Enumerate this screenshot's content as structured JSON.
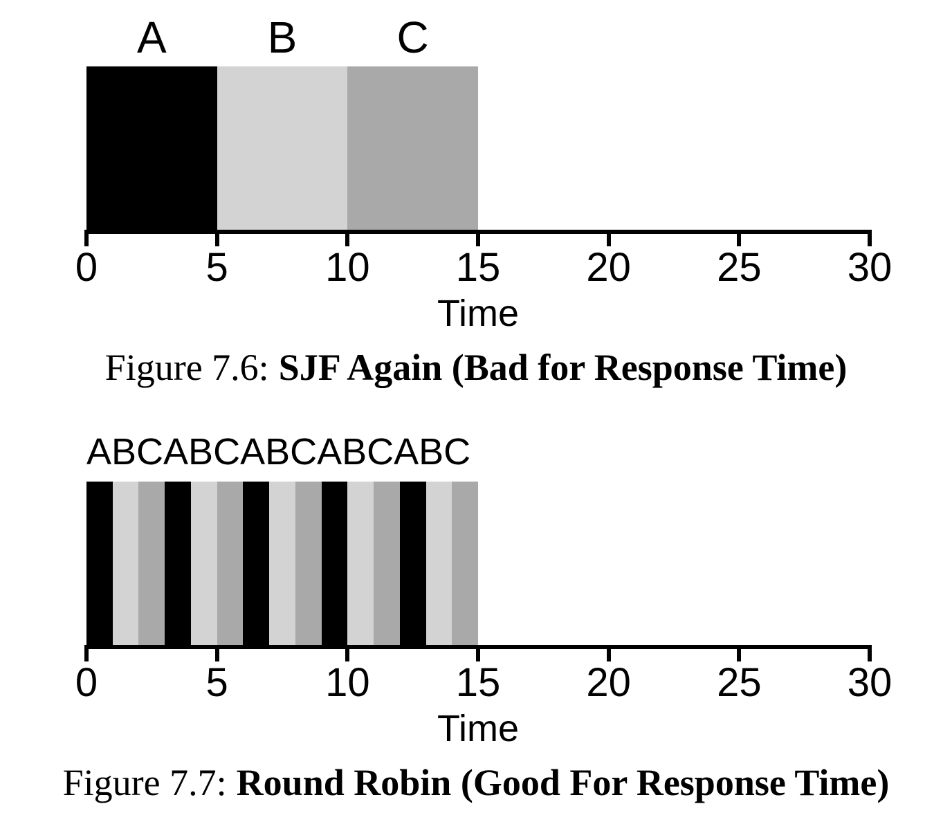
{
  "colors": {
    "job_a": "#000000",
    "job_b": "#d3d3d3",
    "job_c": "#a9a9a9",
    "axis": "#000000",
    "background": "#ffffff"
  },
  "chart_data": [
    {
      "type": "bar",
      "subtype": "scheduling-timeline",
      "caption_prefix": "Figure 7.6:",
      "caption_title": "SJF Again (Bad for Response Time)",
      "xlabel": "Time",
      "xlim": [
        0,
        30
      ],
      "xticks": [
        0,
        5,
        10,
        15,
        20,
        25,
        30
      ],
      "grid": false,
      "top_label": "",
      "job_colors": {
        "A": "#000000",
        "B": "#d3d3d3",
        "C": "#a9a9a9"
      },
      "segments": [
        {
          "job": "A",
          "start": 0,
          "end": 5
        },
        {
          "job": "B",
          "start": 5,
          "end": 10
        },
        {
          "job": "C",
          "start": 10,
          "end": 15
        }
      ],
      "segment_labels": [
        {
          "text": "A",
          "x": 2.5
        },
        {
          "text": "B",
          "x": 7.5
        },
        {
          "text": "C",
          "x": 12.5
        }
      ]
    },
    {
      "type": "bar",
      "subtype": "scheduling-timeline",
      "caption_prefix": "Figure 7.7:",
      "caption_title": "Round Robin (Good For Response Time)",
      "xlabel": "Time",
      "xlim": [
        0,
        30
      ],
      "xticks": [
        0,
        5,
        10,
        15,
        20,
        25,
        30
      ],
      "grid": false,
      "top_label": "ABCABCABCABCABC",
      "job_colors": {
        "A": "#000000",
        "B": "#d3d3d3",
        "C": "#a9a9a9"
      },
      "segments": [
        {
          "job": "A",
          "start": 0,
          "end": 1
        },
        {
          "job": "B",
          "start": 1,
          "end": 2
        },
        {
          "job": "C",
          "start": 2,
          "end": 3
        },
        {
          "job": "A",
          "start": 3,
          "end": 4
        },
        {
          "job": "B",
          "start": 4,
          "end": 5
        },
        {
          "job": "C",
          "start": 5,
          "end": 6
        },
        {
          "job": "A",
          "start": 6,
          "end": 7
        },
        {
          "job": "B",
          "start": 7,
          "end": 8
        },
        {
          "job": "C",
          "start": 8,
          "end": 9
        },
        {
          "job": "A",
          "start": 9,
          "end": 10
        },
        {
          "job": "B",
          "start": 10,
          "end": 11
        },
        {
          "job": "C",
          "start": 11,
          "end": 12
        },
        {
          "job": "A",
          "start": 12,
          "end": 13
        },
        {
          "job": "B",
          "start": 13,
          "end": 14
        },
        {
          "job": "C",
          "start": 14,
          "end": 15
        }
      ],
      "segment_labels": []
    }
  ]
}
